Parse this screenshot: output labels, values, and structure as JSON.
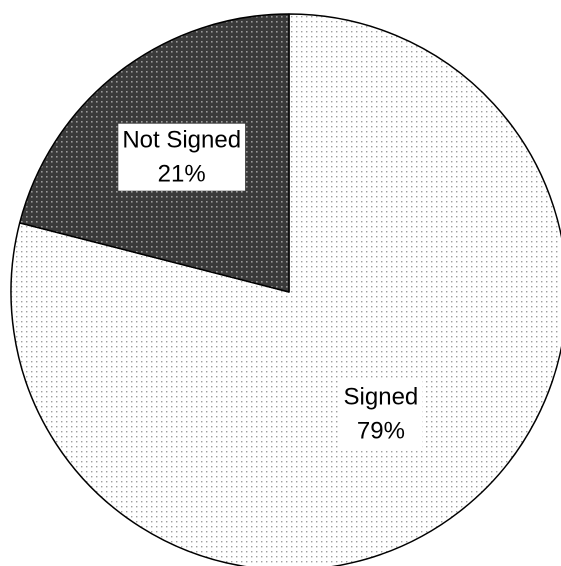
{
  "chart_data": {
    "type": "pie",
    "title": "",
    "slices": [
      {
        "label": "Signed",
        "value": 79,
        "value_label": "79%",
        "fill": "light-dotted"
      },
      {
        "label": "Not Signed",
        "value": 21,
        "value_label": "21%",
        "fill": "dark-dotted"
      }
    ],
    "start_angle": "12 o'clock",
    "direction": "clockwise",
    "legend": "none",
    "labels": "inside slices with white background"
  },
  "colors": {
    "signed_base": "#ffffff",
    "signed_dot": "#a0a0a0",
    "not_signed_base": "#3a3a3a",
    "not_signed_dot": "#9a9a9a",
    "outline": "#000000"
  }
}
